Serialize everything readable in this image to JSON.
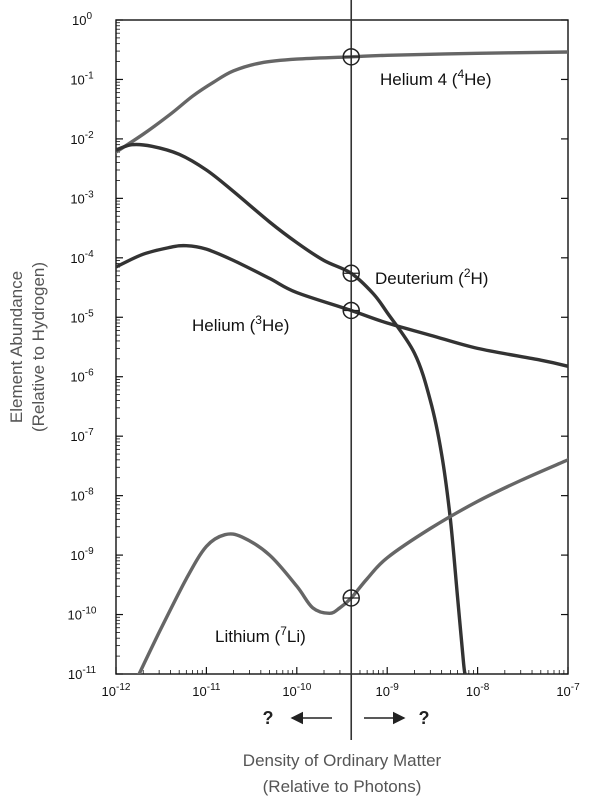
{
  "chart_data": {
    "type": "line",
    "x_scale": "log",
    "y_scale": "log",
    "xlim": [
      1e-12,
      1e-07
    ],
    "ylim": [
      1e-11,
      1
    ],
    "grid": false,
    "xlabel": [
      "Density of Ordinary Matter",
      "(Relative to Photons)"
    ],
    "ylabel": [
      "Element Abundance",
      "(Relative to Hydrogen)"
    ],
    "x_ticks": [
      {
        "value": 1e-12,
        "base": "10",
        "exp": "-12"
      },
      {
        "value": 1e-11,
        "base": "10",
        "exp": "-11"
      },
      {
        "value": 1e-10,
        "base": "10",
        "exp": "-10"
      },
      {
        "value": 1e-09,
        "base": "10",
        "exp": "-9"
      },
      {
        "value": 1e-08,
        "base": "10",
        "exp": "-8"
      },
      {
        "value": 1e-07,
        "base": "10",
        "exp": "-7"
      }
    ],
    "y_ticks": [
      {
        "value": 1,
        "base": "10",
        "exp": "0"
      },
      {
        "value": 0.1,
        "base": "10",
        "exp": "-1"
      },
      {
        "value": 0.01,
        "base": "10",
        "exp": "-2"
      },
      {
        "value": 0.001,
        "base": "10",
        "exp": "-3"
      },
      {
        "value": 0.0001,
        "base": "10",
        "exp": "-4"
      },
      {
        "value": 1e-05,
        "base": "10",
        "exp": "-5"
      },
      {
        "value": 1e-06,
        "base": "10",
        "exp": "-6"
      },
      {
        "value": 1e-07,
        "base": "10",
        "exp": "-7"
      },
      {
        "value": 1e-08,
        "base": "10",
        "exp": "-8"
      },
      {
        "value": 1e-09,
        "base": "10",
        "exp": "-9"
      },
      {
        "value": 1e-10,
        "base": "10",
        "exp": "-10"
      },
      {
        "value": 1e-11,
        "base": "10",
        "exp": "-11"
      }
    ],
    "vertical_line_x": 4e-10,
    "arrows": {
      "left_label": "?",
      "right_label": "?"
    },
    "series": [
      {
        "name": "Helium 4 (4He)",
        "label_parts": [
          "Helium 4 (",
          "4",
          "He)"
        ],
        "color": "#666666",
        "marker": {
          "x": 4e-10,
          "y": 0.24
        },
        "points": [
          [
            1e-12,
            0.006
          ],
          [
            2e-12,
            0.012
          ],
          [
            4e-12,
            0.026
          ],
          [
            7e-12,
            0.052
          ],
          [
            1.2e-11,
            0.09
          ],
          [
            2e-11,
            0.14
          ],
          [
            4e-11,
            0.19
          ],
          [
            1e-10,
            0.22
          ],
          [
            4e-10,
            0.24
          ],
          [
            1e-09,
            0.255
          ],
          [
            1e-08,
            0.275
          ],
          [
            1e-07,
            0.29
          ]
        ]
      },
      {
        "name": "Deuterium (2H)",
        "label_parts": [
          "Deuterium (",
          "2",
          "H)"
        ],
        "color": "#333333",
        "marker": {
          "x": 4e-10,
          "y": 5.5e-05
        },
        "points": [
          [
            1e-12,
            0.0065
          ],
          [
            1.5e-12,
            0.008
          ],
          [
            2.5e-12,
            0.0075
          ],
          [
            5e-12,
            0.0055
          ],
          [
            1e-11,
            0.003
          ],
          [
            2e-11,
            0.0013
          ],
          [
            5e-11,
            0.0004
          ],
          [
            1e-10,
            0.00018
          ],
          [
            2e-10,
            9e-05
          ],
          [
            4e-10,
            5.5e-05
          ],
          [
            7e-10,
            2.5e-05
          ],
          [
            1e-09,
            1.2e-05
          ],
          [
            2e-09,
            2.5e-06
          ],
          [
            3e-09,
            4e-07
          ],
          [
            4e-09,
            5e-08
          ],
          [
            5e-09,
            4e-09
          ],
          [
            6e-09,
            2e-10
          ],
          [
            7e-09,
            1.5e-11
          ],
          [
            7.3e-09,
            1e-11
          ]
        ]
      },
      {
        "name": "Helium (3He)",
        "label_parts": [
          "Helium (",
          "3",
          "He)"
        ],
        "color": "#333333",
        "marker": {
          "x": 4e-10,
          "y": 1.3e-05
        },
        "points": [
          [
            1e-12,
            7e-05
          ],
          [
            2e-12,
            0.000115
          ],
          [
            4e-12,
            0.00015
          ],
          [
            6e-12,
            0.00016
          ],
          [
            1e-11,
            0.00014
          ],
          [
            2e-11,
            9e-05
          ],
          [
            5e-11,
            4.5e-05
          ],
          [
            1e-10,
            2.6e-05
          ],
          [
            4e-10,
            1.3e-05
          ],
          [
            1e-09,
            8e-06
          ],
          [
            3e-09,
            5e-06
          ],
          [
            1e-08,
            3e-06
          ],
          [
            5e-08,
            1.9e-06
          ],
          [
            1e-07,
            1.5e-06
          ]
        ]
      },
      {
        "name": "Lithium (7Li)",
        "label_parts": [
          "Lithium (",
          "7",
          "Li)"
        ],
        "color": "#666666",
        "marker": {
          "x": 4e-10,
          "y": 1.9e-10
        },
        "points": [
          [
            1.8e-12,
            1e-11
          ],
          [
            3e-12,
            5e-11
          ],
          [
            6e-12,
            4e-10
          ],
          [
            1e-11,
            1.4e-09
          ],
          [
            1.6e-11,
            2.2e-09
          ],
          [
            2.5e-11,
            2e-09
          ],
          [
            5e-11,
            1e-09
          ],
          [
            1e-10,
            3e-10
          ],
          [
            1.5e-10,
            1.3e-10
          ],
          [
            2.3e-10,
            1.05e-10
          ],
          [
            3e-10,
            1.3e-10
          ],
          [
            4e-10,
            1.9e-10
          ],
          [
            6e-10,
            4e-10
          ],
          [
            1e-09,
            9e-10
          ],
          [
            3e-09,
            2.8e-09
          ],
          [
            1e-08,
            8e-09
          ],
          [
            3e-08,
            1.8e-08
          ],
          [
            1e-07,
            4e-08
          ]
        ]
      }
    ]
  }
}
